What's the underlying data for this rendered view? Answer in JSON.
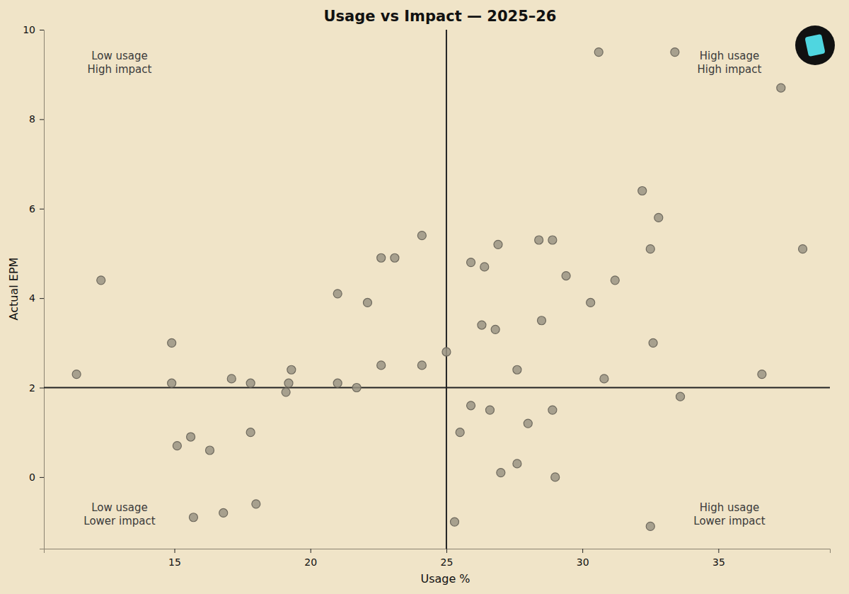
{
  "chart_data": {
    "type": "scatter",
    "title": "Usage vs Impact — 2025–26",
    "x_label": "Usage %",
    "y_label": "Actual EPM",
    "annotations": [
      "Low usage\nHigh impact",
      "High usage\nHigh impact",
      "Low usage\nLower impact",
      "High usage\nLower impact"
    ],
    "reference_lines": {
      "x": 25,
      "y": 2
    },
    "x": [
      11.4,
      12.3,
      14.9,
      14.9,
      15.1,
      15.6,
      15.7,
      16.3,
      16.8,
      17.1,
      17.8,
      17.8,
      18.0,
      19.1,
      19.2,
      19.3,
      21.0,
      21.0,
      21.7,
      22.1,
      22.6,
      22.6,
      23.1,
      24.1,
      24.1,
      25.0,
      25.3,
      25.5,
      25.9,
      25.9,
      26.3,
      26.4,
      26.6,
      26.8,
      26.9,
      27.0,
      27.6,
      27.6,
      28.0,
      28.4,
      28.5,
      28.9,
      28.9,
      29.0,
      29.4,
      30.3,
      30.6,
      30.8,
      31.2,
      32.2,
      32.5,
      32.5,
      32.6,
      32.8,
      33.4,
      33.6,
      36.6,
      37.3,
      38.1
    ],
    "values": [
      2.3,
      4.4,
      3.0,
      2.1,
      0.7,
      0.9,
      -0.9,
      0.6,
      -0.8,
      2.2,
      2.1,
      1.0,
      -0.6,
      1.9,
      2.1,
      2.4,
      4.1,
      2.1,
      2.0,
      3.9,
      4.9,
      2.5,
      4.9,
      5.4,
      2.5,
      2.8,
      -1.0,
      1.0,
      1.6,
      4.8,
      3.4,
      4.7,
      1.5,
      3.3,
      5.2,
      0.1,
      2.4,
      0.3,
      1.2,
      5.3,
      3.5,
      5.3,
      1.5,
      0.0,
      4.5,
      3.9,
      9.5,
      2.2,
      4.4,
      6.4,
      5.1,
      -1.1,
      3.0,
      5.8,
      9.5,
      1.8,
      2.3,
      8.7,
      5.1
    ],
    "color": "#9a9484",
    "marker": "circle",
    "xlim": [
      10.2,
      39.1
    ],
    "xticks": [
      15,
      20,
      25,
      30,
      35
    ],
    "ylim": [
      -1.6,
      10
    ],
    "yticks": [
      0,
      2,
      4,
      6,
      8,
      10
    ],
    "grid": false
  }
}
